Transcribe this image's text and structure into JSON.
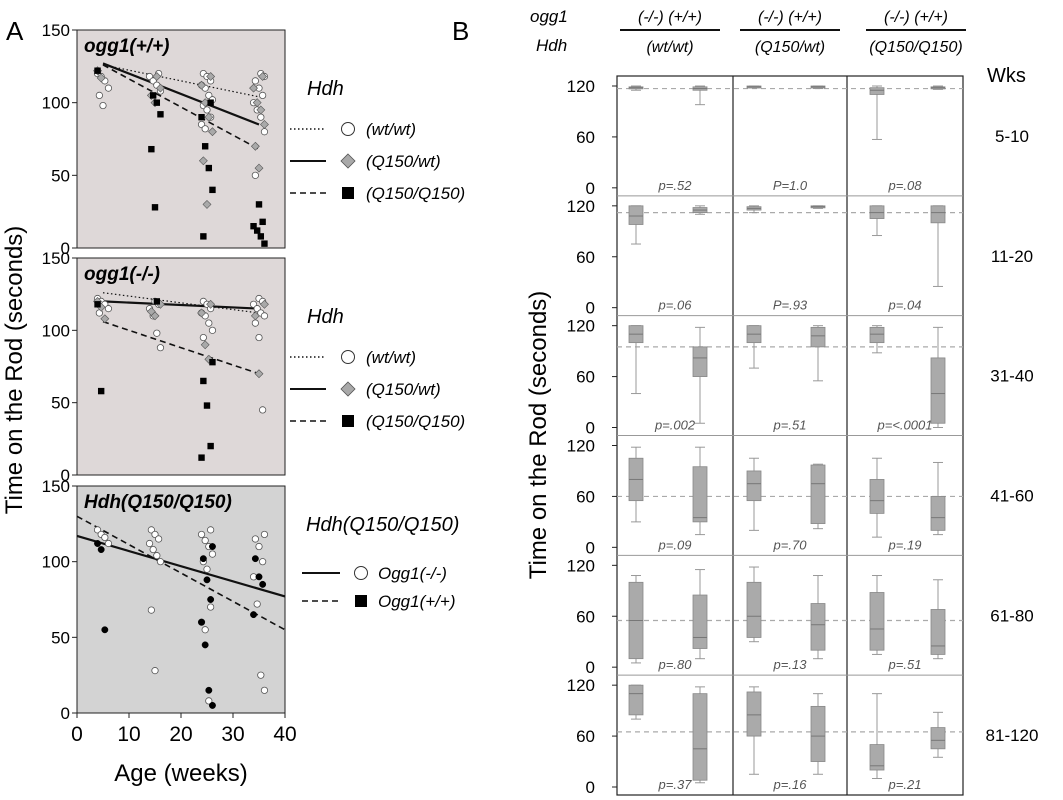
{
  "figure": {
    "panel_labels": [
      "A",
      "B"
    ]
  },
  "chart_data": [
    {
      "type": "scatter",
      "panel": "A",
      "title": "ogg1(+/+)",
      "xlim": [
        0,
        40
      ],
      "ylim": [
        0,
        150
      ],
      "yticks": [
        "0",
        "50",
        "100",
        "150"
      ],
      "legend": {
        "header": "Hdh",
        "entries": [
          {
            "label": "(wt/wt)",
            "line": "dotted",
            "marker": "circle-open"
          },
          {
            "label": "(Q150/wt)",
            "line": "solid",
            "marker": "diamond-gray"
          },
          {
            "label": "(Q150/Q150)",
            "line": "dashed",
            "marker": "square-black"
          }
        ]
      },
      "series": [
        {
          "name": "(wt/wt)",
          "marker": "circle-open",
          "x": [
            5,
            5,
            5,
            5,
            5,
            5,
            15,
            15,
            15,
            15,
            15,
            25,
            25,
            25,
            25,
            25,
            25,
            25,
            25,
            25,
            25,
            25,
            25,
            35,
            35,
            35,
            35,
            35,
            35,
            35,
            35,
            35,
            35
          ],
          "y": [
            120,
            118,
            115,
            110,
            105,
            98,
            120,
            118,
            115,
            112,
            108,
            120,
            118,
            115,
            112,
            110,
            105,
            102,
            98,
            95,
            90,
            85,
            82,
            120,
            118,
            115,
            110,
            105,
            100,
            95,
            90,
            80,
            50
          ]
        },
        {
          "name": "(Q150/wt)",
          "marker": "diamond-gray",
          "x": [
            5,
            5,
            15,
            15,
            15,
            15,
            25,
            25,
            25,
            25,
            25,
            25,
            25,
            35,
            35,
            35,
            35,
            35,
            35,
            35
          ],
          "y": [
            122,
            117,
            118,
            110,
            105,
            100,
            118,
            112,
            100,
            90,
            80,
            60,
            30,
            118,
            110,
            100,
            95,
            85,
            70,
            55
          ]
        },
        {
          "name": "(Q150/Q150)",
          "marker": "square-black",
          "x": [
            5,
            15,
            15,
            15,
            15,
            15,
            25,
            25,
            25,
            25,
            25,
            25,
            35,
            35,
            35,
            35,
            35,
            35
          ],
          "y": [
            122,
            105,
            100,
            92,
            68,
            28,
            100,
            90,
            70,
            55,
            40,
            8,
            30,
            18,
            15,
            12,
            8,
            3
          ]
        }
      ],
      "trend_lines": [
        {
          "series": "(wt/wt)",
          "style": "dotted",
          "x": [
            5,
            35
          ],
          "y": [
            126,
            104
          ]
        },
        {
          "series": "(Q150/wt)",
          "style": "solid",
          "x": [
            5,
            35
          ],
          "y": [
            127,
            85
          ]
        },
        {
          "series": "(Q150/Q150)",
          "style": "dashed",
          "x": [
            5,
            35
          ],
          "y": [
            126,
            68
          ]
        }
      ]
    },
    {
      "type": "scatter",
      "panel": "A",
      "title": "ogg1(-/-)",
      "xlim": [
        0,
        40
      ],
      "ylim": [
        0,
        150
      ],
      "yticks": [
        "0",
        "50",
        "100",
        "150"
      ],
      "legend": {
        "header": "Hdh",
        "entries": [
          {
            "label": "(wt/wt)",
            "line": "dotted",
            "marker": "circle-open"
          },
          {
            "label": "(Q150/wt)",
            "line": "solid",
            "marker": "diamond-gray"
          },
          {
            "label": "(Q150/Q150)",
            "line": "dashed",
            "marker": "square-black"
          }
        ]
      },
      "series": [
        {
          "name": "(wt/wt)",
          "marker": "circle-open",
          "x": [
            5,
            5,
            5,
            5,
            5,
            15,
            15,
            15,
            15,
            15,
            15,
            25,
            25,
            25,
            25,
            25,
            25,
            25,
            25,
            35,
            35,
            35,
            35,
            35,
            35,
            35,
            35,
            35
          ],
          "y": [
            122,
            120,
            118,
            115,
            112,
            120,
            118,
            115,
            110,
            98,
            88,
            120,
            118,
            115,
            112,
            110,
            105,
            100,
            95,
            122,
            120,
            118,
            115,
            112,
            110,
            105,
            95,
            45
          ]
        },
        {
          "name": "(Q150/wt)",
          "marker": "diamond-gray",
          "x": [
            5,
            5,
            5,
            15,
            15,
            15,
            25,
            25,
            25,
            25,
            35,
            35,
            35
          ],
          "y": [
            120,
            116,
            108,
            118,
            113,
            110,
            118,
            112,
            90,
            80,
            118,
            110,
            70
          ]
        },
        {
          "name": "(Q150/Q150)",
          "marker": "square-black",
          "x": [
            5,
            5,
            15,
            25,
            25,
            25,
            25,
            25
          ],
          "y": [
            118,
            58,
            120,
            78,
            65,
            48,
            20,
            12
          ]
        }
      ],
      "trend_lines": [
        {
          "series": "(wt/wt)",
          "style": "dotted",
          "x": [
            5,
            35
          ],
          "y": [
            126,
            112
          ]
        },
        {
          "series": "(Q150/wt)",
          "style": "solid",
          "x": [
            5,
            35
          ],
          "y": [
            120,
            115
          ]
        },
        {
          "series": "(Q150/Q150)",
          "style": "dashed",
          "x": [
            5,
            35
          ],
          "y": [
            106,
            70
          ]
        }
      ]
    },
    {
      "type": "scatter",
      "panel": "A",
      "title": "Hdh(Q150/Q150)",
      "xlabel": "Age (weeks)",
      "ylabel": "Time on the Rod (seconds)",
      "xlim": [
        0,
        40
      ],
      "ylim": [
        0,
        150
      ],
      "xticks": [
        "0",
        "10",
        "20",
        "30",
        "40"
      ],
      "yticks": [
        "0",
        "50",
        "100",
        "150"
      ],
      "legend": {
        "header": "Hdh(Q150/Q150)",
        "entries": [
          {
            "label": "Ogg1(-/-)",
            "line": "solid",
            "marker": "circle-open"
          },
          {
            "label": "Ogg1(+/+)",
            "line": "dashed",
            "marker": "circle-black"
          }
        ]
      },
      "series": [
        {
          "name": "Ogg1(-/-)",
          "marker": "circle-open",
          "x": [
            5,
            5,
            5,
            5,
            15,
            15,
            15,
            15,
            15,
            15,
            15,
            15,
            15,
            25,
            25,
            25,
            25,
            25,
            25,
            25,
            25,
            25,
            25,
            25,
            35,
            35,
            35,
            35,
            35,
            35,
            35,
            35
          ],
          "y": [
            121,
            118,
            116,
            112,
            121,
            118,
            115,
            112,
            108,
            104,
            100,
            68,
            28,
            121,
            118,
            114,
            110,
            105,
            100,
            95,
            70,
            60,
            55,
            8,
            118,
            115,
            110,
            100,
            90,
            72,
            25,
            15
          ]
        },
        {
          "name": "Ogg1(+/+)",
          "marker": "circle-black",
          "x": [
            5,
            5,
            5,
            25,
            25,
            25,
            25,
            25,
            25,
            25,
            25,
            35,
            35,
            35,
            35
          ],
          "y": [
            112,
            108,
            55,
            110,
            102,
            88,
            75,
            60,
            45,
            15,
            5,
            102,
            90,
            85,
            65
          ]
        }
      ],
      "trend_lines": [
        {
          "series": "Ogg1(-/-)",
          "style": "solid",
          "x": [
            0,
            40
          ],
          "y": [
            117,
            77
          ]
        },
        {
          "series": "Ogg1(+/+)",
          "style": "dashed",
          "x": [
            0,
            40
          ],
          "y": [
            130,
            55
          ]
        }
      ]
    },
    {
      "type": "box",
      "panel": "B",
      "ylabel": "Time on the Rod (seconds)",
      "row_label_header": "Wks",
      "header": {
        "row_labels": [
          "ogg1",
          "Hdh"
        ],
        "genotype_pair": "(-/-)  (+/+)",
        "groups": [
          "(wt/wt)",
          "(Q150/wt)",
          "(Q150/Q150)"
        ]
      },
      "ylim": [
        0,
        120
      ],
      "yticks": [
        "0",
        "60",
        "120"
      ],
      "rows": [
        {
          "label": "5-10",
          "median_ref": 117,
          "pvalues": [
            "p=.52",
            "P=1.0",
            "p=.08"
          ],
          "boxes": [
            {
              "min": 115,
              "q1": 117,
              "median": 118,
              "q3": 119,
              "max": 120
            },
            {
              "min": 98,
              "q1": 115,
              "median": 117,
              "q3": 119,
              "max": 120
            },
            {
              "min": 118,
              "q1": 118,
              "median": 119,
              "q3": 120,
              "max": 120
            },
            {
              "min": 117,
              "q1": 118,
              "median": 119,
              "q3": 120,
              "max": 120
            },
            {
              "min": 57,
              "q1": 110,
              "median": 115,
              "q3": 118,
              "max": 120
            },
            {
              "min": 116,
              "q1": 117,
              "median": 118,
              "q3": 119,
              "max": 120
            }
          ]
        },
        {
          "label": "11-20",
          "median_ref": 112,
          "pvalues": [
            "p=.06",
            "P=.93",
            "p=.04"
          ],
          "boxes": [
            {
              "min": 75,
              "q1": 98,
              "median": 108,
              "q3": 120,
              "max": 120
            },
            {
              "min": 110,
              "q1": 112,
              "median": 115,
              "q3": 118,
              "max": 120
            },
            {
              "min": 112,
              "q1": 115,
              "median": 117,
              "q3": 119,
              "max": 120
            },
            {
              "min": 117,
              "q1": 118,
              "median": 119,
              "q3": 120,
              "max": 120
            },
            {
              "min": 85,
              "q1": 105,
              "median": 112,
              "q3": 120,
              "max": 120
            },
            {
              "min": 25,
              "q1": 100,
              "median": 112,
              "q3": 120,
              "max": 120
            }
          ]
        },
        {
          "label": "31-40",
          "median_ref": 95,
          "pvalues": [
            "p=.002",
            "p=.51",
            "p=<.0001"
          ],
          "boxes": [
            {
              "min": 40,
              "q1": 100,
              "median": 110,
              "q3": 120,
              "max": 120
            },
            {
              "min": 5,
              "q1": 60,
              "median": 82,
              "q3": 95,
              "max": 118
            },
            {
              "min": 70,
              "q1": 100,
              "median": 110,
              "q3": 120,
              "max": 120
            },
            {
              "min": 55,
              "q1": 95,
              "median": 108,
              "q3": 118,
              "max": 120
            },
            {
              "min": 88,
              "q1": 100,
              "median": 110,
              "q3": 118,
              "max": 120
            },
            {
              "min": 0,
              "q1": 5,
              "median": 40,
              "q3": 82,
              "max": 118
            }
          ]
        },
        {
          "label": "41-60",
          "median_ref": 60,
          "pvalues": [
            "p=.09",
            "p=.70",
            "p=.19"
          ],
          "boxes": [
            {
              "min": 30,
              "q1": 55,
              "median": 80,
              "q3": 105,
              "max": 118
            },
            {
              "min": 15,
              "q1": 30,
              "median": 35,
              "q3": 95,
              "max": 118
            },
            {
              "min": 20,
              "q1": 55,
              "median": 75,
              "q3": 90,
              "max": 105
            },
            {
              "min": 22,
              "q1": 28,
              "median": 75,
              "q3": 97,
              "max": 98
            },
            {
              "min": 12,
              "q1": 40,
              "median": 55,
              "q3": 80,
              "max": 105
            },
            {
              "min": 15,
              "q1": 20,
              "median": 35,
              "q3": 60,
              "max": 100
            }
          ]
        },
        {
          "label": "61-80",
          "median_ref": 55,
          "pvalues": [
            "p=.80",
            "p=.13",
            "p=.51"
          ],
          "boxes": [
            {
              "min": 5,
              "q1": 10,
              "median": 55,
              "q3": 100,
              "max": 108
            },
            {
              "min": 10,
              "q1": 22,
              "median": 35,
              "q3": 85,
              "max": 115
            },
            {
              "min": 30,
              "q1": 35,
              "median": 60,
              "q3": 100,
              "max": 118
            },
            {
              "min": 10,
              "q1": 20,
              "median": 50,
              "q3": 75,
              "max": 108
            },
            {
              "min": 15,
              "q1": 20,
              "median": 45,
              "q3": 88,
              "max": 108
            },
            {
              "min": 10,
              "q1": 15,
              "median": 25,
              "q3": 68,
              "max": 103
            }
          ]
        },
        {
          "label": "81-120",
          "median_ref": 65,
          "pvalues": [
            "p=.37",
            "p=.16",
            "p=.21"
          ],
          "boxes": [
            {
              "min": 80,
              "q1": 85,
              "median": 110,
              "q3": 120,
              "max": 120
            },
            {
              "min": 5,
              "q1": 8,
              "median": 45,
              "q3": 110,
              "max": 118
            },
            {
              "min": 15,
              "q1": 60,
              "median": 85,
              "q3": 112,
              "max": 118
            },
            {
              "min": 15,
              "q1": 30,
              "median": 60,
              "q3": 95,
              "max": 110
            },
            {
              "min": 10,
              "q1": 20,
              "median": 25,
              "q3": 50,
              "max": 110
            },
            {
              "min": 35,
              "q1": 45,
              "median": 55,
              "q3": 70,
              "max": 88
            }
          ]
        }
      ]
    }
  ]
}
